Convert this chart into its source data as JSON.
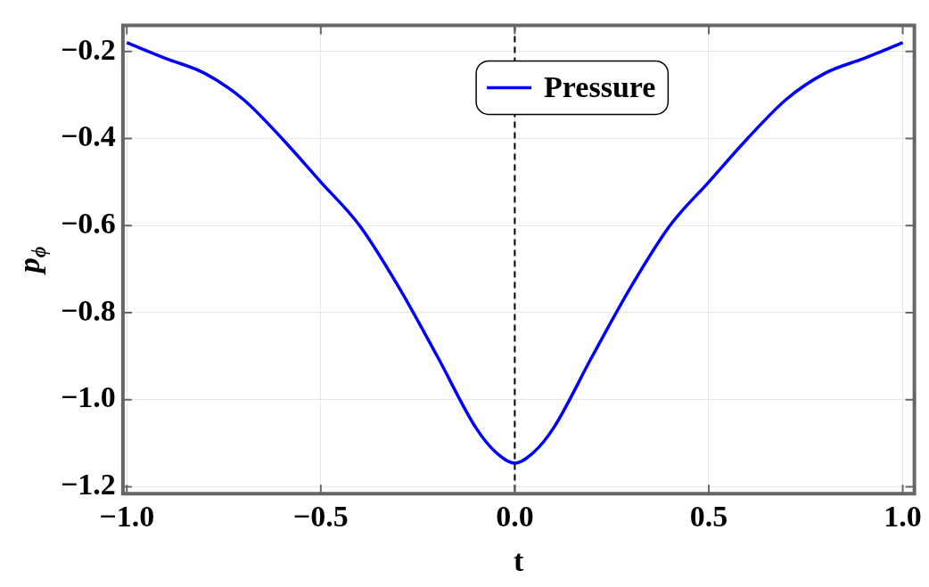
{
  "chart_data": {
    "type": "line",
    "xlabel": "t",
    "ylabel": "p$_{ϕ}$",
    "x": [
      -1,
      -0.9,
      -0.8,
      -0.7,
      -0.6,
      -0.5,
      -0.4,
      -0.3,
      -0.2,
      -0.1,
      -0.05,
      0,
      0.05,
      0.1,
      0.2,
      0.3,
      0.4,
      0.5,
      0.6,
      0.7,
      0.8,
      0.9,
      1
    ],
    "series": [
      {
        "name": "Pressure",
        "color": "#0000ff",
        "values": [
          -0.18,
          -0.216,
          -0.25,
          -0.31,
          -0.4,
          -0.5,
          -0.6,
          -0.74,
          -0.9,
          -1.065,
          -1.12,
          -1.146,
          -1.12,
          -1.065,
          -0.9,
          -0.74,
          -0.6,
          -0.5,
          -0.4,
          -0.31,
          -0.25,
          -0.216,
          -0.18
        ]
      }
    ],
    "xlim": [
      -1.01,
      1.03
    ],
    "xticks": [
      {
        "value": -1,
        "label": "−1.0"
      },
      {
        "value": -0.5,
        "label": "−0.5"
      },
      {
        "value": 0,
        "label": "0.0"
      },
      {
        "value": 0.5,
        "label": "0.5"
      },
      {
        "value": 1,
        "label": "1.0"
      }
    ],
    "ylim": [
      -1.216,
      -0.14
    ],
    "yticks": [
      {
        "value": -1.2,
        "label": "−1.2"
      },
      {
        "value": -1,
        "label": "−1.0"
      },
      {
        "value": -0.8,
        "label": "−0.8"
      },
      {
        "value": -0.6,
        "label": "−0.6"
      },
      {
        "value": -0.4,
        "label": "−0.4"
      },
      {
        "value": -0.2,
        "label": "−0.2"
      }
    ],
    "ref_lines": [
      {
        "axis": "x",
        "value": 0,
        "color": "#000000",
        "line_style": "dashed"
      }
    ],
    "grid": true,
    "legend": "top",
    "marker": "none",
    "line_style": "solid"
  }
}
